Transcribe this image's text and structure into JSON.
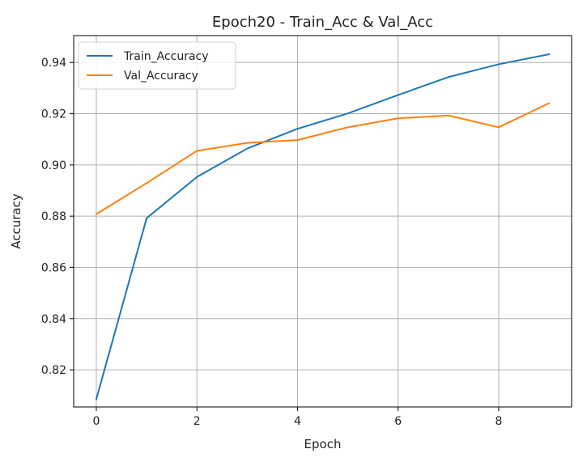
{
  "chart_data": {
    "type": "line",
    "title": "Epoch20 - Train_Acc & Val_Acc",
    "xlabel": "Epoch",
    "ylabel": "Accuracy",
    "x": [
      0,
      1,
      2,
      3,
      4,
      5,
      6,
      7,
      8,
      9
    ],
    "xlim": [
      -0.45,
      9.45
    ],
    "ylim": [
      0.8055,
      0.9505
    ],
    "xticks": [
      0,
      2,
      4,
      6,
      8
    ],
    "yticks": [
      0.82,
      0.84,
      0.86,
      0.88,
      0.9,
      0.92,
      0.94
    ],
    "xtick_labels": [
      "0",
      "2",
      "4",
      "6",
      "8"
    ],
    "ytick_labels": [
      "0.82",
      "0.84",
      "0.86",
      "0.88",
      "0.90",
      "0.92",
      "0.94"
    ],
    "grid": true,
    "legend_position": "top-left",
    "series": [
      {
        "name": "Train_Accuracy",
        "color": "#1f77b4",
        "values": [
          0.8085,
          0.8792,
          0.8953,
          0.9064,
          0.9141,
          0.9201,
          0.9273,
          0.9343,
          0.9393,
          0.9432
        ]
      },
      {
        "name": "Val_Accuracy",
        "color": "#ff7f0e",
        "values": [
          0.8808,
          0.8929,
          0.9055,
          0.9086,
          0.9097,
          0.9147,
          0.9182,
          0.9193,
          0.9147,
          0.9241
        ]
      }
    ]
  }
}
